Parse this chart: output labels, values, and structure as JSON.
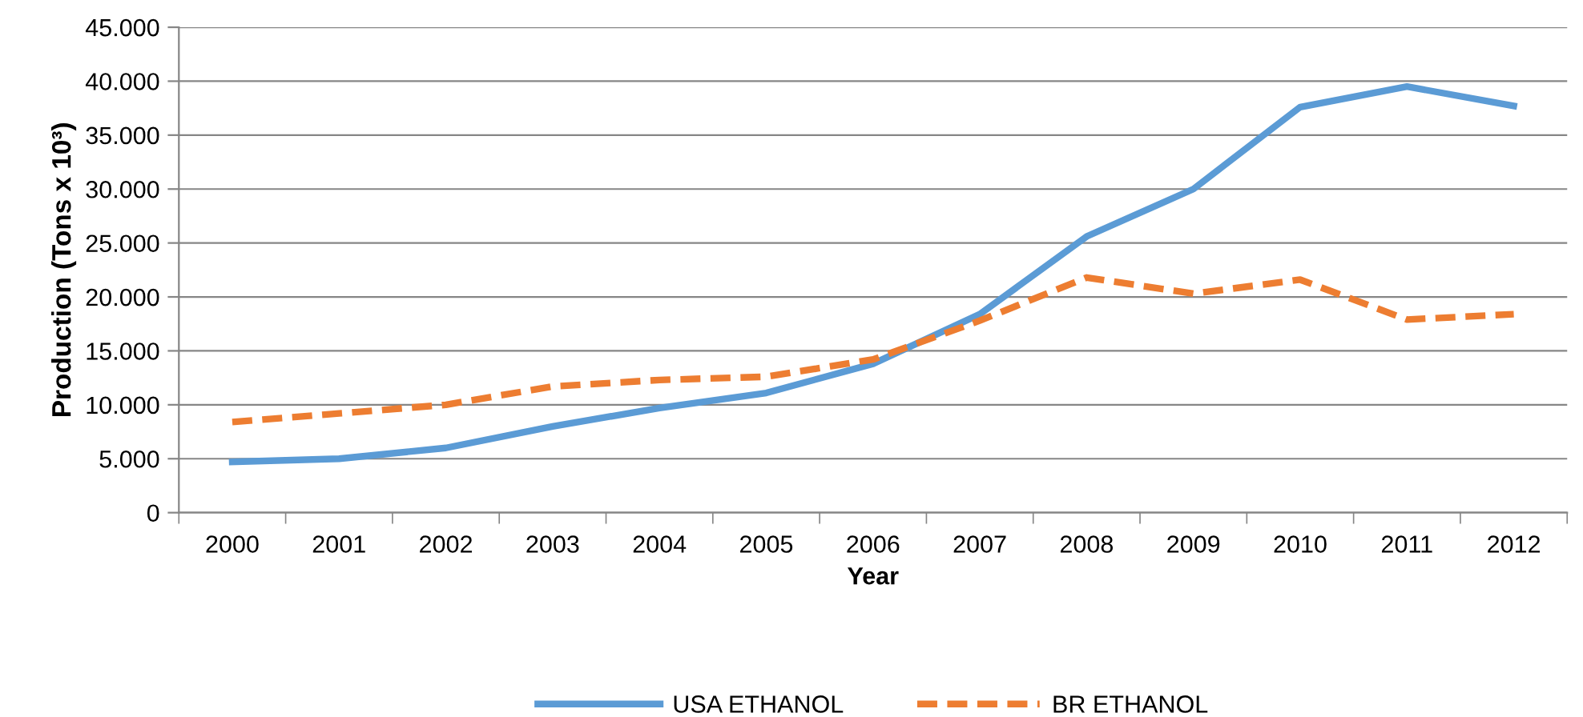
{
  "chart_data": {
    "type": "line",
    "xlabel": "Year",
    "ylabel": "Production (Tons x 10³)",
    "categories": [
      "2000",
      "2001",
      "2002",
      "2003",
      "2004",
      "2005",
      "2006",
      "2007",
      "2008",
      "2009",
      "2010",
      "2011",
      "2012"
    ],
    "series": [
      {
        "name": "USA ETHANOL",
        "color": "#5b9bd5",
        "line_style": "solid",
        "values": [
          4700,
          5000,
          6000,
          8000,
          9700,
          11100,
          13800,
          18400,
          25600,
          30000,
          37600,
          39500,
          37700
        ]
      },
      {
        "name": "BR ETHANOL",
        "color": "#ed7d31",
        "line_style": "dashed",
        "values": [
          8400,
          9200,
          10000,
          11700,
          12300,
          12600,
          14200,
          17800,
          21800,
          20300,
          21600,
          17900,
          18400
        ]
      }
    ],
    "ylim": [
      0,
      45000
    ],
    "yticks": [
      {
        "value": 0,
        "label": "0"
      },
      {
        "value": 5000,
        "label": "5.000"
      },
      {
        "value": 10000,
        "label": "10.000"
      },
      {
        "value": 15000,
        "label": "15.000"
      },
      {
        "value": 20000,
        "label": "20.000"
      },
      {
        "value": 25000,
        "label": "25.000"
      },
      {
        "value": 30000,
        "label": "30.000"
      },
      {
        "value": 35000,
        "label": "35.000"
      },
      {
        "value": 40000,
        "label": "40.000"
      },
      {
        "value": 45000,
        "label": "45.000"
      }
    ],
    "grid": "y",
    "legend": "bottom",
    "marker": "none"
  }
}
